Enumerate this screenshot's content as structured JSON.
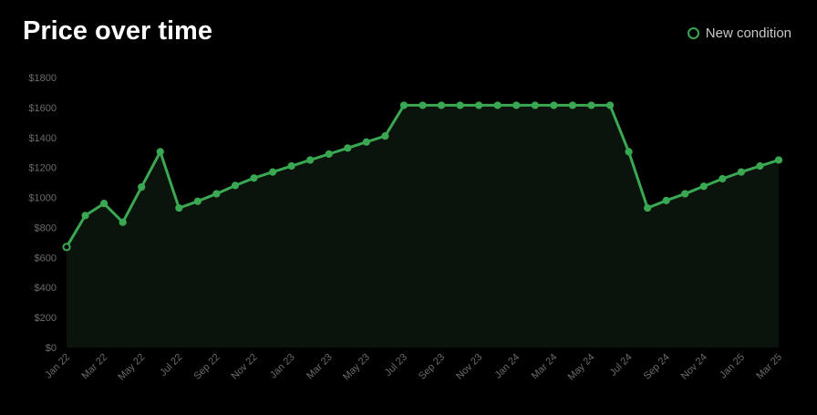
{
  "title": "Price over time",
  "legend": {
    "label": "New condition"
  },
  "colors": {
    "background": "#000000",
    "line": "#3aa852",
    "area": "#0a140c",
    "axis_text": "#6b6b6b",
    "title": "#ffffff"
  },
  "chart_data": {
    "type": "line",
    "title": "Price over time",
    "xlabel": "",
    "ylabel": "",
    "ylim": [
      0,
      1800
    ],
    "y_ticks": [
      "$0",
      "$200",
      "$400",
      "$600",
      "$800",
      "$1000",
      "$1200",
      "$1400",
      "$1600",
      "$1800"
    ],
    "y_tick_values": [
      0,
      200,
      400,
      600,
      800,
      1000,
      1200,
      1400,
      1600,
      1800
    ],
    "x_tick_labels": [
      "Jan 22",
      "Mar 22",
      "May 22",
      "Jul 22",
      "Sep 22",
      "Nov 22",
      "Jan 23",
      "Mar 23",
      "May 23",
      "Jul 23",
      "Sep 23",
      "Nov 23",
      "Jan 24",
      "Mar 24",
      "May 24",
      "Jul 24",
      "Sep 24",
      "Nov 24",
      "Jan 25",
      "Mar 25"
    ],
    "grid": false,
    "legend_position": "top-right",
    "categories": [
      "Jan 22",
      "Feb 22",
      "Mar 22",
      "Apr 22",
      "May 22",
      "Jun 22",
      "Jul 22",
      "Aug 22",
      "Sep 22",
      "Oct 22",
      "Nov 22",
      "Dec 22",
      "Jan 23",
      "Feb 23",
      "Mar 23",
      "Apr 23",
      "May 23",
      "Jun 23",
      "Jul 23",
      "Aug 23",
      "Sep 23",
      "Oct 23",
      "Nov 23",
      "Dec 23",
      "Jan 24",
      "Feb 24",
      "Mar 24",
      "Apr 24",
      "May 24",
      "Jun 24",
      "Jul 24",
      "Aug 24",
      "Sep 24",
      "Oct 24",
      "Nov 24",
      "Dec 24",
      "Jan 25",
      "Feb 25",
      "Mar 25"
    ],
    "series": [
      {
        "name": "New condition",
        "values": [
          670,
          880,
          960,
          835,
          1070,
          1305,
          930,
          975,
          1025,
          1080,
          1130,
          1170,
          1210,
          1250,
          1290,
          1330,
          1370,
          1410,
          1615,
          1615,
          1615,
          1615,
          1615,
          1615,
          1615,
          1615,
          1615,
          1615,
          1615,
          1615,
          1305,
          930,
          980,
          1025,
          1075,
          1125,
          1170,
          1210,
          1250
        ]
      }
    ]
  }
}
